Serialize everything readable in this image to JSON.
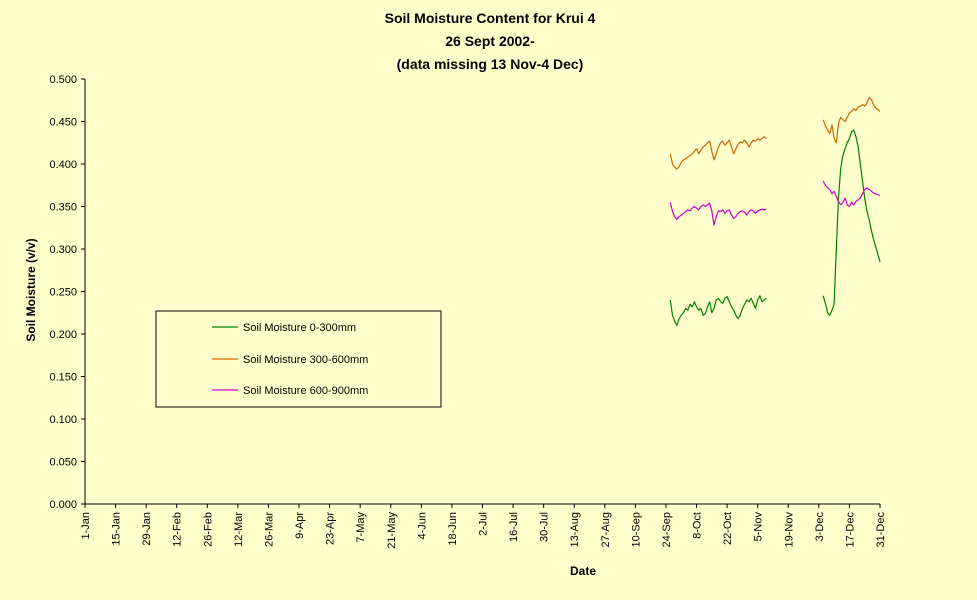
{
  "chart_data": {
    "type": "line",
    "title_lines": [
      "Soil Moisture Content for Krui 4",
      "26 Sept 2002-",
      "(data missing 13 Nov-4 Dec)"
    ],
    "xlabel": "Date",
    "ylabel": "Soil Moisture (v/v)",
    "ylim": [
      0,
      0.5
    ],
    "xlim_days": [
      1,
      365
    ],
    "y_ticks": [
      "0.000",
      "0.050",
      "0.100",
      "0.150",
      "0.200",
      "0.250",
      "0.300",
      "0.350",
      "0.400",
      "0.450",
      "0.500"
    ],
    "x_ticks": [
      {
        "label": "1-Jan",
        "day": 1
      },
      {
        "label": "15-Jan",
        "day": 15
      },
      {
        "label": "29-Jan",
        "day": 29
      },
      {
        "label": "12-Feb",
        "day": 43
      },
      {
        "label": "26-Feb",
        "day": 57
      },
      {
        "label": "12-Mar",
        "day": 71
      },
      {
        "label": "26-Mar",
        "day": 85
      },
      {
        "label": "9-Apr",
        "day": 99
      },
      {
        "label": "23-Apr",
        "day": 113
      },
      {
        "label": "7-May",
        "day": 127
      },
      {
        "label": "21-May",
        "day": 141
      },
      {
        "label": "4-Jun",
        "day": 155
      },
      {
        "label": "18-Jun",
        "day": 169
      },
      {
        "label": "2-Jul",
        "day": 183
      },
      {
        "label": "16-Jul",
        "day": 197
      },
      {
        "label": "30-Jul",
        "day": 211
      },
      {
        "label": "13-Aug",
        "day": 225
      },
      {
        "label": "27-Aug",
        "day": 239
      },
      {
        "label": "10-Sep",
        "day": 253
      },
      {
        "label": "24-Sep",
        "day": 267
      },
      {
        "label": "8-Oct",
        "day": 281
      },
      {
        "label": "22-Oct",
        "day": 295
      },
      {
        "label": "5-Nov",
        "day": 309
      },
      {
        "label": "19-Nov",
        "day": 323
      },
      {
        "label": "3-Dec",
        "day": 337
      },
      {
        "label": "17-Dec",
        "day": 351
      },
      {
        "label": "31-Dec",
        "day": 365
      }
    ],
    "grid": false,
    "legend": "left-middle",
    "series": [
      {
        "name": "Soil Moisture 0-300mm",
        "color": "#008000",
        "segments": [
          [
            [
              269,
              0.24
            ],
            [
              270,
              0.222
            ],
            [
              271,
              0.215
            ],
            [
              272,
              0.21
            ],
            [
              273,
              0.218
            ],
            [
              274,
              0.222
            ],
            [
              275,
              0.225
            ],
            [
              276,
              0.23
            ],
            [
              277,
              0.228
            ],
            [
              278,
              0.235
            ],
            [
              279,
              0.232
            ],
            [
              280,
              0.238
            ],
            [
              281,
              0.232
            ],
            [
              282,
              0.228
            ],
            [
              283,
              0.23
            ],
            [
              284,
              0.222
            ],
            [
              285,
              0.224
            ],
            [
              286,
              0.232
            ],
            [
              287,
              0.238
            ],
            [
              288,
              0.225
            ],
            [
              289,
              0.23
            ],
            [
              290,
              0.24
            ],
            [
              291,
              0.242
            ],
            [
              292,
              0.238
            ],
            [
              293,
              0.236
            ],
            [
              294,
              0.242
            ],
            [
              295,
              0.244
            ],
            [
              296,
              0.238
            ],
            [
              297,
              0.232
            ],
            [
              298,
              0.228
            ],
            [
              299,
              0.222
            ],
            [
              300,
              0.218
            ],
            [
              301,
              0.222
            ],
            [
              302,
              0.23
            ],
            [
              303,
              0.235
            ],
            [
              304,
              0.24
            ],
            [
              305,
              0.238
            ],
            [
              306,
              0.242
            ],
            [
              307,
              0.236
            ],
            [
              308,
              0.23
            ],
            [
              309,
              0.24
            ],
            [
              310,
              0.245
            ],
            [
              311,
              0.238
            ],
            [
              312,
              0.24
            ],
            [
              313,
              0.242
            ]
          ],
          [
            [
              339,
              0.245
            ],
            [
              340,
              0.236
            ],
            [
              341,
              0.225
            ],
            [
              342,
              0.222
            ],
            [
              343,
              0.228
            ],
            [
              344,
              0.235
            ],
            [
              345,
              0.3
            ],
            [
              346,
              0.36
            ],
            [
              347,
              0.395
            ],
            [
              348,
              0.41
            ],
            [
              349,
              0.418
            ],
            [
              350,
              0.425
            ],
            [
              351,
              0.43
            ],
            [
              352,
              0.438
            ],
            [
              353,
              0.44
            ],
            [
              354,
              0.432
            ],
            [
              355,
              0.42
            ],
            [
              356,
              0.4
            ],
            [
              357,
              0.38
            ],
            [
              358,
              0.36
            ],
            [
              359,
              0.345
            ],
            [
              360,
              0.335
            ],
            [
              361,
              0.322
            ],
            [
              362,
              0.312
            ],
            [
              363,
              0.303
            ],
            [
              364,
              0.294
            ],
            [
              365,
              0.285
            ]
          ]
        ]
      },
      {
        "name": "Soil Moisture 300-600mm",
        "color": "#cc6600",
        "segments": [
          [
            [
              269,
              0.412
            ],
            [
              270,
              0.4
            ],
            [
              271,
              0.396
            ],
            [
              272,
              0.394
            ],
            [
              273,
              0.397
            ],
            [
              274,
              0.402
            ],
            [
              275,
              0.405
            ],
            [
              276,
              0.406
            ],
            [
              277,
              0.408
            ],
            [
              278,
              0.41
            ],
            [
              279,
              0.412
            ],
            [
              280,
              0.415
            ],
            [
              281,
              0.418
            ],
            [
              282,
              0.412
            ],
            [
              283,
              0.416
            ],
            [
              284,
              0.42
            ],
            [
              285,
              0.422
            ],
            [
              286,
              0.425
            ],
            [
              287,
              0.427
            ],
            [
              288,
              0.415
            ],
            [
              289,
              0.405
            ],
            [
              290,
              0.412
            ],
            [
              291,
              0.42
            ],
            [
              292,
              0.425
            ],
            [
              293,
              0.427
            ],
            [
              294,
              0.422
            ],
            [
              295,
              0.425
            ],
            [
              296,
              0.428
            ],
            [
              297,
              0.42
            ],
            [
              298,
              0.412
            ],
            [
              299,
              0.418
            ],
            [
              300,
              0.423
            ],
            [
              301,
              0.426
            ],
            [
              302,
              0.425
            ],
            [
              303,
              0.428
            ],
            [
              304,
              0.425
            ],
            [
              305,
              0.42
            ],
            [
              306,
              0.425
            ],
            [
              307,
              0.428
            ],
            [
              308,
              0.427
            ],
            [
              309,
              0.43
            ],
            [
              310,
              0.428
            ],
            [
              311,
              0.43
            ],
            [
              312,
              0.432
            ],
            [
              313,
              0.43
            ]
          ],
          [
            [
              339,
              0.452
            ],
            [
              340,
              0.445
            ],
            [
              341,
              0.44
            ],
            [
              342,
              0.436
            ],
            [
              343,
              0.446
            ],
            [
              344,
              0.43
            ],
            [
              345,
              0.425
            ],
            [
              346,
              0.448
            ],
            [
              347,
              0.455
            ],
            [
              348,
              0.452
            ],
            [
              349,
              0.45
            ],
            [
              350,
              0.455
            ],
            [
              351,
              0.46
            ],
            [
              352,
              0.462
            ],
            [
              353,
              0.465
            ],
            [
              354,
              0.463
            ],
            [
              355,
              0.467
            ],
            [
              356,
              0.468
            ],
            [
              357,
              0.47
            ],
            [
              358,
              0.468
            ],
            [
              359,
              0.472
            ],
            [
              360,
              0.478
            ],
            [
              361,
              0.476
            ],
            [
              362,
              0.47
            ],
            [
              363,
              0.466
            ],
            [
              364,
              0.464
            ],
            [
              365,
              0.462
            ]
          ]
        ]
      },
      {
        "name": "Soil Moisture 600-900mm",
        "color": "#cc00cc",
        "segments": [
          [
            [
              269,
              0.355
            ],
            [
              270,
              0.344
            ],
            [
              271,
              0.338
            ],
            [
              272,
              0.335
            ],
            [
              273,
              0.338
            ],
            [
              274,
              0.34
            ],
            [
              275,
              0.342
            ],
            [
              276,
              0.344
            ],
            [
              277,
              0.346
            ],
            [
              278,
              0.345
            ],
            [
              279,
              0.348
            ],
            [
              280,
              0.35
            ],
            [
              281,
              0.348
            ],
            [
              282,
              0.346
            ],
            [
              283,
              0.35
            ],
            [
              284,
              0.352
            ],
            [
              285,
              0.35
            ],
            [
              286,
              0.352
            ],
            [
              287,
              0.354
            ],
            [
              288,
              0.345
            ],
            [
              289,
              0.328
            ],
            [
              290,
              0.338
            ],
            [
              291,
              0.345
            ],
            [
              292,
              0.344
            ],
            [
              293,
              0.346
            ],
            [
              294,
              0.342
            ],
            [
              295,
              0.345
            ],
            [
              296,
              0.346
            ],
            [
              297,
              0.34
            ],
            [
              298,
              0.336
            ],
            [
              299,
              0.338
            ],
            [
              300,
              0.342
            ],
            [
              301,
              0.344
            ],
            [
              302,
              0.345
            ],
            [
              303,
              0.343
            ],
            [
              304,
              0.34
            ],
            [
              305,
              0.344
            ],
            [
              306,
              0.346
            ],
            [
              307,
              0.345
            ],
            [
              308,
              0.342
            ],
            [
              309,
              0.345
            ],
            [
              310,
              0.346
            ],
            [
              311,
              0.347
            ],
            [
              312,
              0.346
            ],
            [
              313,
              0.347
            ]
          ],
          [
            [
              339,
              0.38
            ],
            [
              340,
              0.375
            ],
            [
              341,
              0.372
            ],
            [
              342,
              0.37
            ],
            [
              343,
              0.365
            ],
            [
              344,
              0.368
            ],
            [
              345,
              0.362
            ],
            [
              346,
              0.356
            ],
            [
              347,
              0.352
            ],
            [
              348,
              0.355
            ],
            [
              349,
              0.36
            ],
            [
              350,
              0.352
            ],
            [
              351,
              0.35
            ],
            [
              352,
              0.355
            ],
            [
              353,
              0.352
            ],
            [
              354,
              0.356
            ],
            [
              355,
              0.358
            ],
            [
              356,
              0.36
            ],
            [
              357,
              0.365
            ],
            [
              358,
              0.37
            ],
            [
              359,
              0.372
            ],
            [
              360,
              0.37
            ],
            [
              361,
              0.368
            ],
            [
              362,
              0.366
            ],
            [
              363,
              0.365
            ],
            [
              364,
              0.364
            ],
            [
              365,
              0.363
            ]
          ]
        ]
      }
    ]
  }
}
